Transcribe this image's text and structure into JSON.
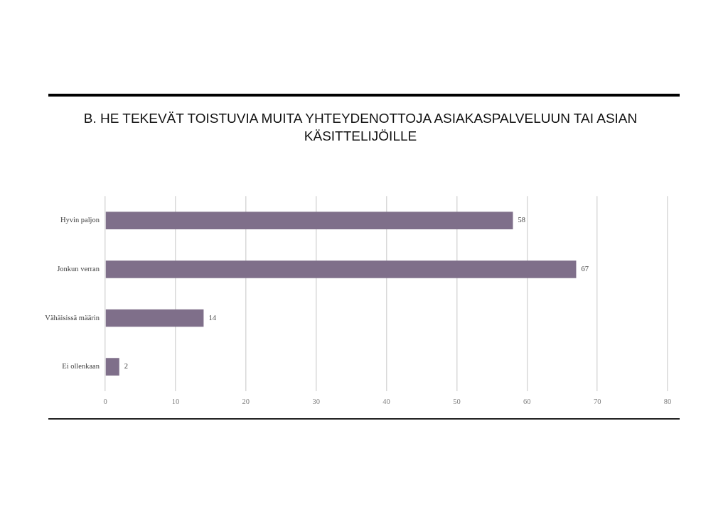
{
  "chart_data": {
    "type": "bar",
    "orientation": "horizontal",
    "title": "B. HE TEKEVÄT TOISTUVIA MUITA YHTEYDENOTTOJA ASIAKASPALVELUUN TAI ASIAN KÄSITTELIJÖILLE",
    "categories": [
      "Hyvin paljon",
      "Jonkun verran",
      "Vähäisissä määrin",
      "Ei ollenkaan"
    ],
    "values": [
      58,
      67,
      14,
      2
    ],
    "color": "#7f6f8a",
    "xlim": [
      0,
      80
    ],
    "xticks": [
      0,
      10,
      20,
      30,
      40,
      50,
      60,
      70,
      80
    ],
    "grid": "x",
    "data_labels": true
  }
}
